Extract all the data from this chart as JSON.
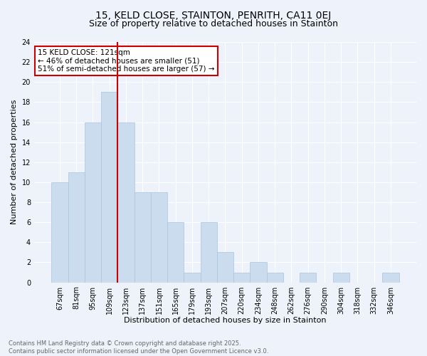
{
  "title1": "15, KELD CLOSE, STAINTON, PENRITH, CA11 0EJ",
  "title2": "Size of property relative to detached houses in Stainton",
  "xlabel": "Distribution of detached houses by size in Stainton",
  "ylabel": "Number of detached properties",
  "bins": [
    "67sqm",
    "81sqm",
    "95sqm",
    "109sqm",
    "123sqm",
    "137sqm",
    "151sqm",
    "165sqm",
    "179sqm",
    "193sqm",
    "207sqm",
    "220sqm",
    "234sqm",
    "248sqm",
    "262sqm",
    "276sqm",
    "290sqm",
    "304sqm",
    "318sqm",
    "332sqm",
    "346sqm"
  ],
  "values": [
    10,
    11,
    16,
    19,
    16,
    9,
    9,
    6,
    1,
    6,
    3,
    1,
    2,
    1,
    0,
    1,
    0,
    1,
    0,
    0,
    1
  ],
  "bar_color": "#ccdcef",
  "bar_edge_color": "#a8c4de",
  "vline_color": "#cc0000",
  "annotation_text": "15 KELD CLOSE: 121sqm\n← 46% of detached houses are smaller (51)\n51% of semi-detached houses are larger (57) →",
  "annotation_box_color": "#ffffff",
  "annotation_box_edge": "#cc0000",
  "ylim": [
    0,
    24
  ],
  "yticks": [
    0,
    2,
    4,
    6,
    8,
    10,
    12,
    14,
    16,
    18,
    20,
    22,
    24
  ],
  "footer_text": "Contains HM Land Registry data © Crown copyright and database right 2025.\nContains public sector information licensed under the Open Government Licence v3.0.",
  "bg_color": "#eef2fb",
  "grid_color": "#ffffff",
  "title_fontsize": 10,
  "subtitle_fontsize": 9,
  "ylabel_fontsize": 8,
  "xlabel_fontsize": 8,
  "tick_fontsize": 7,
  "footer_fontsize": 6,
  "annotation_fontsize": 7.5,
  "vline_bin_index": 4
}
